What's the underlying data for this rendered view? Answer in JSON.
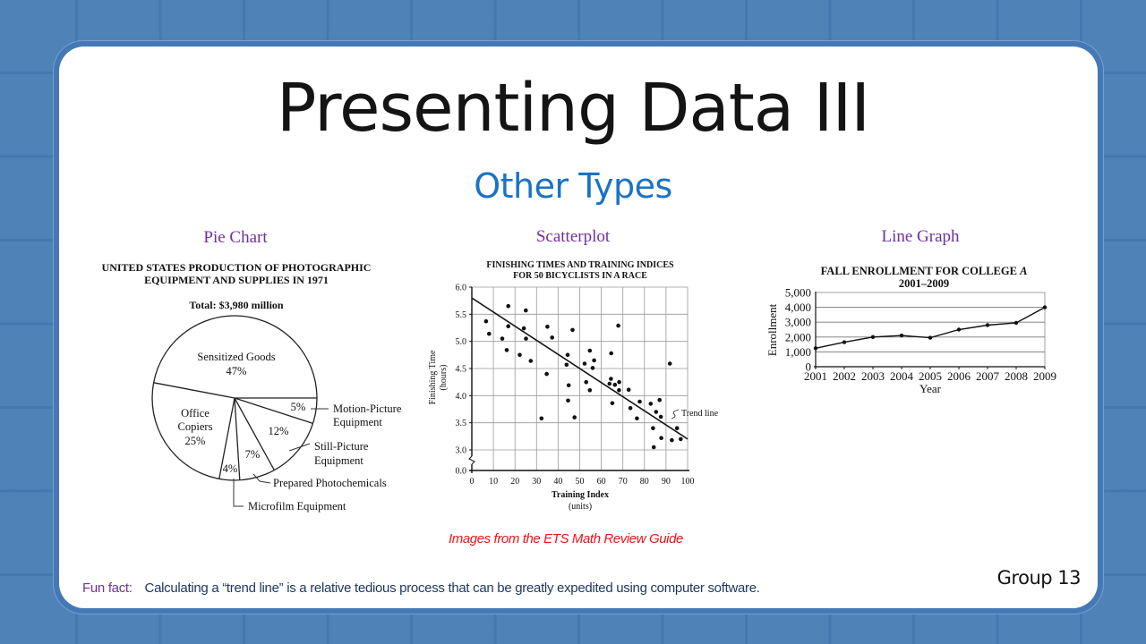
{
  "slide": {
    "title": "Presenting Data III",
    "subtitle": "Other Types",
    "captions": {
      "pie": "Pie Chart",
      "scatter": "Scatterplot",
      "line": "Line Graph"
    },
    "source_note": "Images from the ETS Math Review Guide",
    "fun_fact_label": "Fun fact:",
    "fun_fact_text": "Calculating a “trend line” is a relative tedious process that can be greatly expedited using computer software.",
    "group_label": "Group 13",
    "colors": {
      "background": "#4f83b8",
      "title": "#141414",
      "subtitle": "#1a73c4",
      "caption": "#7030a0",
      "source_note": "#e8141b",
      "fun_fact_label": "#7030a0",
      "fun_fact_text": "#1f3864"
    }
  },
  "pie": {
    "title_line1": "UNITED STATES PRODUCTION OF PHOTOGRAPHIC",
    "title_line2": "EQUIPMENT AND SUPPLIES IN 1971",
    "total": "Total:  $3,980 million",
    "labels": {
      "sensitized_name": "Sensitized Goods",
      "sensitized_pct": "47%",
      "office_1": "Office",
      "office_2": "Copiers",
      "office_pct": "25%",
      "motion_pct": "5%",
      "motion_1": "Motion-Picture",
      "motion_2": "Equipment",
      "still_pct": "12%",
      "still_1": "Still-Picture",
      "still_2": "Equipment",
      "photo_pct": "7%",
      "photo_name": "Prepared Photochemicals",
      "micro_pct": "4%",
      "micro_name": "Microfilm Equipment"
    }
  },
  "scatter": {
    "title_line1": "FINISHING TIMES AND TRAINING INDICES",
    "title_line2": "FOR 50 BICYCLISTS IN A RACE",
    "ylabel_1": "Finishing Time",
    "ylabel_2": "(hours)",
    "xlabel_1": "Training Index",
    "xlabel_2": "(units)",
    "trend_label": "Trend line"
  },
  "line": {
    "title_line1": "FALL ENROLLMENT FOR COLLEGE A",
    "title_line2": "2001–2009",
    "ylabel": "Enrollment",
    "xlabel": "Year"
  },
  "chart_data": [
    {
      "type": "pie",
      "title": "UNITED STATES PRODUCTION OF PHOTOGRAPHIC EQUIPMENT AND SUPPLIES IN 1971",
      "subtitle": "Total: $3,980 million",
      "categories": [
        "Sensitized Goods",
        "Motion-Picture Equipment",
        "Still-Picture Equipment",
        "Prepared Photochemicals",
        "Microfilm Equipment",
        "Office Copiers"
      ],
      "values": [
        47,
        5,
        12,
        7,
        4,
        25
      ],
      "unit": "%"
    },
    {
      "type": "scatter",
      "title": "FINISHING TIMES AND TRAINING INDICES FOR 50 BICYCLISTS IN A RACE",
      "xlabel": "Training Index (units)",
      "ylabel": "Finishing Time (hours)",
      "xlim": [
        0,
        100
      ],
      "ylim": [
        3.0,
        6.0
      ],
      "y_axis_break": "0.0 to 3.0",
      "xticks": [
        0,
        10,
        20,
        30,
        40,
        50,
        60,
        70,
        80,
        90,
        100
      ],
      "yticks": [
        0.0,
        3.0,
        3.5,
        4.0,
        4.5,
        5.0,
        5.5,
        6.0
      ],
      "grid": true,
      "points": [
        [
          6.6,
          5.37
        ],
        [
          8.0,
          5.14
        ],
        [
          14.1,
          5.05
        ],
        [
          16.2,
          4.84
        ],
        [
          16.9,
          5.65
        ],
        [
          16.9,
          5.28
        ],
        [
          22.2,
          4.75
        ],
        [
          24.1,
          5.24
        ],
        [
          25.0,
          5.57
        ],
        [
          25.1,
          5.05
        ],
        [
          27.3,
          4.64
        ],
        [
          32.3,
          3.58
        ],
        [
          34.7,
          4.4
        ],
        [
          35.0,
          5.27
        ],
        [
          37.2,
          5.07
        ],
        [
          43.9,
          4.57
        ],
        [
          44.4,
          4.75
        ],
        [
          44.6,
          3.91
        ],
        [
          44.9,
          4.19
        ],
        [
          46.7,
          5.21
        ],
        [
          47.6,
          3.6
        ],
        [
          52.3,
          4.59
        ],
        [
          53.0,
          4.25
        ],
        [
          54.7,
          4.83
        ],
        [
          54.7,
          4.1
        ],
        [
          56.0,
          4.51
        ],
        [
          56.7,
          4.65
        ],
        [
          63.8,
          4.22
        ],
        [
          64.5,
          4.31
        ],
        [
          64.6,
          4.78
        ],
        [
          65.1,
          3.86
        ],
        [
          66.3,
          4.2
        ],
        [
          67.9,
          5.29
        ],
        [
          68.2,
          4.1
        ],
        [
          68.3,
          4.25
        ],
        [
          72.7,
          4.11
        ],
        [
          73.5,
          3.77
        ],
        [
          76.5,
          3.58
        ],
        [
          77.8,
          3.89
        ],
        [
          82.9,
          3.85
        ],
        [
          84.0,
          3.4
        ],
        [
          84.3,
          3.05
        ],
        [
          85.4,
          3.7
        ],
        [
          87.0,
          3.92
        ],
        [
          87.6,
          3.61
        ],
        [
          87.8,
          3.22
        ],
        [
          91.8,
          4.59
        ],
        [
          92.7,
          3.18
        ],
        [
          95.1,
          3.4
        ],
        [
          96.8,
          3.2
        ]
      ],
      "trend_line": {
        "from": [
          0,
          5.8
        ],
        "to": [
          100,
          3.2
        ],
        "label": "Trend line"
      }
    },
    {
      "type": "line",
      "title": "FALL ENROLLMENT FOR COLLEGE A 2001–2009",
      "xlabel": "Year",
      "ylabel": "Enrollment",
      "categories": [
        "2001",
        "2002",
        "2003",
        "2004",
        "2005",
        "2006",
        "2007",
        "2008",
        "2009"
      ],
      "values": [
        1250,
        1650,
        2000,
        2100,
        1950,
        2500,
        2800,
        2950,
        4000
      ],
      "ylim": [
        0,
        5000
      ],
      "yticks": [
        "0",
        "1,000",
        "2,000",
        "3,000",
        "4,000",
        "5,000"
      ],
      "grid": true
    }
  ]
}
